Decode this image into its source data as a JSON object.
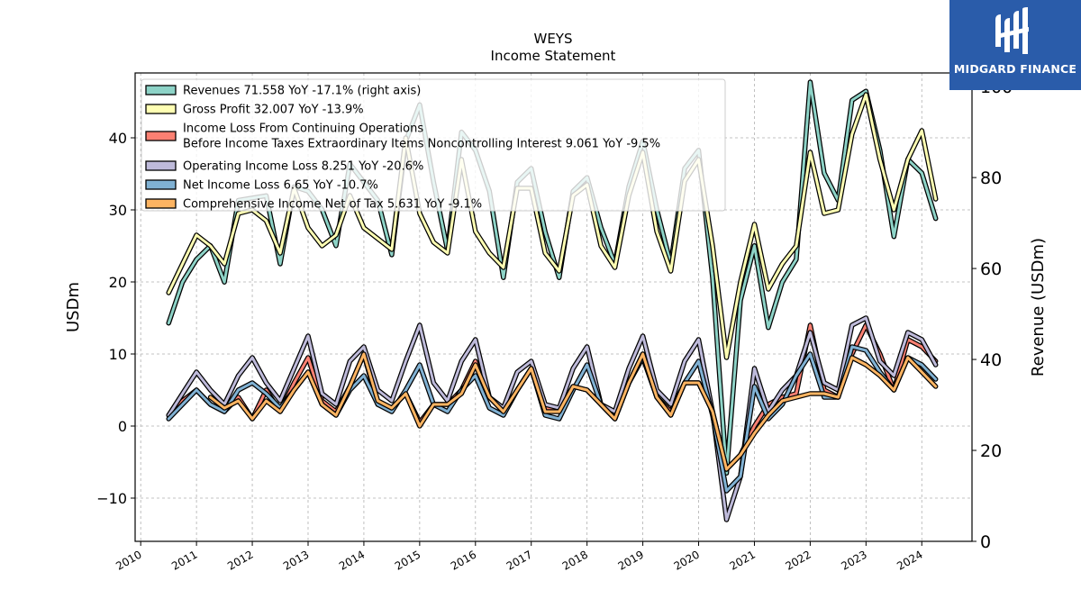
{
  "brand": {
    "name": "MIDGARD FINANCE",
    "logo_icon": "midgard-monogram-icon",
    "background": "#2a5caa"
  },
  "chart_data": {
    "type": "line",
    "title": "WEYS",
    "subtitle": "Income Statement",
    "ylabel": "USDm",
    "y2label": "Revenue (USDm)",
    "xlim": [
      2009.9,
      2024.9
    ],
    "ylim": [
      -16,
      49
    ],
    "y2lim": [
      0,
      103
    ],
    "grid": true,
    "legend_position": "top-left",
    "x_ticks": [
      "2010",
      "2011",
      "2012",
      "2013",
      "2014",
      "2015",
      "2016",
      "2017",
      "2018",
      "2019",
      "2020",
      "2021",
      "2022",
      "2023",
      "2024"
    ],
    "y_ticks": [
      "−10",
      "0",
      "10",
      "20",
      "30",
      "40"
    ],
    "y2_ticks": [
      "0",
      "20",
      "40",
      "60",
      "80",
      "100"
    ],
    "x": [
      2010.5,
      2010.75,
      2011.0,
      2011.25,
      2011.5,
      2011.75,
      2012.0,
      2012.25,
      2012.5,
      2012.75,
      2013.0,
      2013.25,
      2013.5,
      2013.75,
      2014.0,
      2014.25,
      2014.5,
      2014.75,
      2015.0,
      2015.25,
      2015.5,
      2015.75,
      2016.0,
      2016.25,
      2016.5,
      2016.75,
      2017.0,
      2017.25,
      2017.5,
      2017.75,
      2018.0,
      2018.25,
      2018.5,
      2018.75,
      2019.0,
      2019.25,
      2019.5,
      2019.75,
      2020.0,
      2020.25,
      2020.5,
      2020.75,
      2021.0,
      2021.25,
      2021.5,
      2021.75,
      2022.0,
      2022.25,
      2022.5,
      2022.75,
      2023.0,
      2023.25,
      2023.5,
      2023.75,
      2024.0,
      2024.25
    ],
    "series": [
      {
        "name": "Revenues  71.558 YoY -17.1% (right axis)",
        "axis": "right",
        "color": "#8dd3c7",
        "values": [
          48,
          57,
          62,
          65,
          57,
          75,
          75.5,
          76,
          61,
          78,
          77,
          73,
          65,
          83,
          79,
          75,
          63,
          88,
          96,
          79,
          64,
          90,
          86,
          77,
          58,
          79,
          82,
          68,
          58,
          77,
          80,
          69,
          61,
          78,
          88,
          73,
          61,
          82,
          86,
          58,
          15,
          53,
          65,
          47,
          57,
          62,
          101,
          81,
          75,
          97,
          99,
          86,
          67,
          84,
          81,
          71
        ]
      },
      {
        "name": "Gross Profit  32.007 YoY -13.9%",
        "axis": "left",
        "color": "#ffffb3",
        "values": [
          18.5,
          22.5,
          26.5,
          25,
          22.5,
          29.5,
          30,
          28.5,
          24,
          33,
          27.5,
          25,
          26.5,
          32,
          27.5,
          26,
          24.5,
          40,
          29.5,
          25.5,
          24,
          37,
          27,
          24,
          22,
          33,
          33,
          24,
          21.5,
          32,
          33.5,
          25,
          22,
          32,
          38,
          27,
          21.5,
          34,
          37,
          25,
          9.5,
          20,
          28,
          19,
          22.5,
          25,
          38,
          29.5,
          30,
          40.5,
          46,
          37,
          30,
          37,
          41,
          31.5
        ]
      },
      {
        "name": "Income Loss From Continuing Operations\nBefore Income Taxes Extraordinary Items Noncontrolling Interest  9.061 YoY -9.5%",
        "axis": "left",
        "color": "#fb8072",
        "values": [
          1.5,
          3.5,
          5,
          3,
          2,
          4,
          1,
          5,
          2,
          6,
          9.5,
          3.5,
          2,
          5.5,
          10,
          3,
          2.5,
          4.5,
          0.5,
          3,
          3,
          5,
          9,
          4,
          2,
          5,
          8,
          2.5,
          2,
          5.5,
          5,
          3,
          1,
          6,
          10,
          4,
          2,
          6,
          6,
          2,
          -6,
          -4,
          0,
          3,
          4,
          4.5,
          14,
          5,
          4,
          10,
          14,
          10,
          5,
          12,
          11,
          9
        ]
      },
      {
        "name": "Operating Income Loss  8.251 YoY -20.6%",
        "axis": "left",
        "color": "#bebada",
        "values": [
          1.5,
          4.5,
          7.5,
          5,
          3,
          7,
          9.5,
          6,
          3.5,
          8,
          12.5,
          4.5,
          3,
          9,
          11,
          5,
          3.5,
          9,
          14,
          6,
          3.5,
          9,
          12,
          4,
          2.5,
          7.5,
          9,
          3,
          2.5,
          8,
          11,
          3,
          2,
          8,
          12.5,
          5,
          3,
          9,
          12,
          2,
          -13,
          -7,
          8,
          2,
          5,
          7,
          13,
          6,
          5,
          14,
          15,
          9,
          7,
          13,
          12,
          8.5
        ]
      },
      {
        "name": "Net Income Loss  6.65 YoY -10.7%",
        "axis": "left",
        "color": "#80b1d3",
        "values": [
          1,
          3,
          5,
          3,
          2,
          5,
          6,
          4.5,
          2.5,
          5,
          7.5,
          3,
          1.5,
          5,
          7,
          3,
          2,
          5,
          8.5,
          3,
          2,
          5,
          7,
          2.5,
          1.5,
          5,
          8,
          1.5,
          1,
          5,
          8.5,
          3,
          1,
          6,
          9.5,
          4,
          1.5,
          6,
          9,
          1.5,
          -9,
          -7,
          5.5,
          1,
          3,
          7,
          10,
          4,
          4,
          11,
          10.5,
          7.5,
          5,
          9.5,
          8.5,
          6.5
        ]
      },
      {
        "name": "Comprehensive Income Net of Tax  5.631 YoY -9.1%",
        "axis": "left",
        "color": "#fdb462",
        "values": [
          null,
          null,
          null,
          4,
          2.5,
          3.5,
          1,
          3.5,
          2,
          5,
          7.5,
          3,
          1.5,
          5.5,
          10,
          3.5,
          2.5,
          4.5,
          0,
          3,
          3,
          4.5,
          8.5,
          4,
          2,
          5,
          8,
          2,
          2,
          5.5,
          5,
          3,
          1,
          6,
          10,
          4,
          1.5,
          6,
          6,
          2,
          -6,
          -4,
          -1,
          1.5,
          3.5,
          4,
          4.5,
          4.5,
          4,
          9.5,
          8.5,
          7,
          5,
          9.5,
          7.5,
          5.5
        ]
      }
    ]
  }
}
